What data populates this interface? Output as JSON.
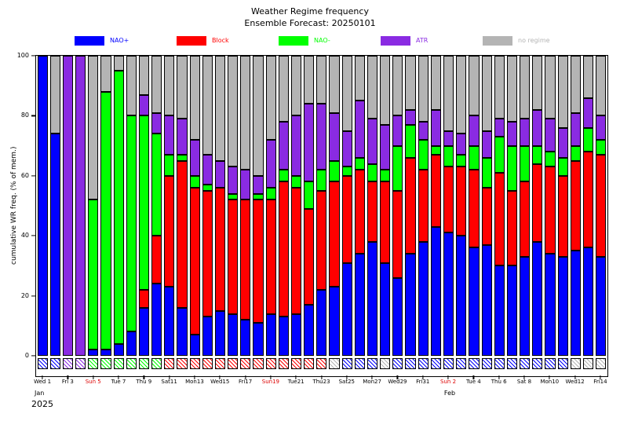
{
  "title": "Weather Regime frequency",
  "subtitle": "Ensemble Forecast: 20250101",
  "ylabel": "cumulative WR freq. (% of mem.)",
  "legend": [
    {
      "label": "NAO+",
      "color": "#0000ff"
    },
    {
      "label": "Block",
      "color": "#ff0000"
    },
    {
      "label": "NAO-",
      "color": "#00ff00"
    },
    {
      "label": "ATR",
      "color": "#8a2be2"
    },
    {
      "label": "no regime",
      "color": "#b4b4b4"
    }
  ],
  "x_axis": {
    "month_jan": "Jan",
    "year": "2025",
    "month_feb": "Feb"
  },
  "chart_data": {
    "type": "bar",
    "stacked": true,
    "title": "Weather Regime frequency",
    "subtitle": "Ensemble Forecast: 20250101",
    "ylabel": "cumulative WR freq. (% of mem.)",
    "ylim": [
      0,
      100
    ],
    "yticks": [
      0,
      20,
      40,
      60,
      80,
      100
    ],
    "num_days": 45,
    "x_start_date": "Wed Jan 1 2025",
    "x_end_date": "Fri Feb 14 2025",
    "sunday_color": "#dd0000",
    "legend_position": "top",
    "series": [
      {
        "name": "NAO+",
        "color": "#0000ff",
        "values": [
          100,
          74,
          0,
          0,
          2,
          2,
          4,
          8,
          16,
          24,
          23,
          16,
          7,
          13,
          15,
          14,
          12,
          11,
          14,
          13,
          14,
          17,
          22,
          23,
          31,
          34,
          38,
          31,
          26,
          34,
          38,
          43,
          41,
          40,
          36,
          37,
          30,
          30,
          33,
          38,
          34,
          33,
          35,
          36,
          33
        ]
      },
      {
        "name": "Block",
        "color": "#ff0000",
        "values": [
          0,
          0,
          0,
          0,
          0,
          0,
          0,
          0,
          6,
          16,
          37,
          49,
          49,
          42,
          41,
          38,
          40,
          41,
          38,
          45,
          42,
          32,
          33,
          35,
          29,
          28,
          20,
          27,
          29,
          32,
          24,
          24,
          22,
          23,
          26,
          19,
          31,
          25,
          25,
          26,
          29,
          27,
          30,
          32,
          34
        ]
      },
      {
        "name": "NAO-",
        "color": "#00ff00",
        "values": [
          0,
          0,
          0,
          0,
          50,
          86,
          91,
          72,
          58,
          34,
          7,
          2,
          4,
          2,
          0,
          2,
          0,
          2,
          4,
          4,
          4,
          9,
          7,
          7,
          3,
          4,
          6,
          4,
          15,
          11,
          10,
          3,
          7,
          4,
          8,
          10,
          12,
          15,
          12,
          6,
          5,
          6,
          5,
          8,
          5
        ]
      },
      {
        "name": "ATR",
        "color": "#8a2be2",
        "values": [
          0,
          0,
          100,
          100,
          0,
          0,
          0,
          0,
          7,
          7,
          13,
          12,
          12,
          10,
          9,
          9,
          10,
          6,
          16,
          16,
          20,
          26,
          22,
          16,
          12,
          19,
          15,
          15,
          10,
          5,
          6,
          12,
          5,
          7,
          10,
          9,
          6,
          8,
          9,
          12,
          11,
          10,
          11,
          10,
          8
        ]
      },
      {
        "name": "no regime",
        "color": "#b4b4b4",
        "values": [
          0,
          26,
          0,
          0,
          48,
          12,
          5,
          20,
          13,
          19,
          20,
          21,
          28,
          33,
          35,
          37,
          38,
          40,
          28,
          22,
          20,
          16,
          16,
          19,
          25,
          15,
          21,
          23,
          20,
          18,
          22,
          18,
          25,
          26,
          20,
          25,
          21,
          22,
          21,
          18,
          21,
          24,
          19,
          14,
          20
        ]
      }
    ],
    "xtick_labels": [
      {
        "day": 0,
        "label": "Wed 1",
        "sunday": false
      },
      {
        "day": 2,
        "label": "Fri 3",
        "sunday": false
      },
      {
        "day": 4,
        "label": "Sun 5",
        "sunday": true
      },
      {
        "day": 6,
        "label": "Tue 7",
        "sunday": false
      },
      {
        "day": 8,
        "label": "Thu 9",
        "sunday": false
      },
      {
        "day": 10,
        "label": "Sat11",
        "sunday": false
      },
      {
        "day": 12,
        "label": "Mon13",
        "sunday": false
      },
      {
        "day": 14,
        "label": "Wed15",
        "sunday": false
      },
      {
        "day": 16,
        "label": "Fri17",
        "sunday": false
      },
      {
        "day": 18,
        "label": "Sun19",
        "sunday": true
      },
      {
        "day": 20,
        "label": "Tue21",
        "sunday": false
      },
      {
        "day": 22,
        "label": "Thu23",
        "sunday": false
      },
      {
        "day": 24,
        "label": "Sat25",
        "sunday": false
      },
      {
        "day": 26,
        "label": "Mon27",
        "sunday": false
      },
      {
        "day": 28,
        "label": "Wed29",
        "sunday": false
      },
      {
        "day": 30,
        "label": "Fri31",
        "sunday": false
      },
      {
        "day": 32,
        "label": "Sun 2",
        "sunday": true
      },
      {
        "day": 34,
        "label": "Tue 4",
        "sunday": false
      },
      {
        "day": 36,
        "label": "Thu 6",
        "sunday": false
      },
      {
        "day": 38,
        "label": "Sat 8",
        "sunday": false
      },
      {
        "day": 40,
        "label": "Mon10",
        "sunday": false
      },
      {
        "day": 42,
        "label": "Wed12",
        "sunday": false
      },
      {
        "day": 44,
        "label": "Fri14",
        "sunday": false
      }
    ],
    "marker_row": [
      "#0000ff",
      "#0000ff",
      "#8a2be2",
      "#8a2be2",
      "#00ff00",
      "#00ff00",
      "#00ff00",
      "#00ff00",
      "#00ff00",
      "#00ff00",
      "#ff0000",
      "#ff0000",
      "#ff0000",
      "#ff0000",
      "#ff0000",
      "#ff0000",
      "#ff0000",
      "#ff0000",
      "#ff0000",
      "#ff0000",
      "#ff0000",
      "#ff0000",
      "#ff0000",
      "#b4b4b4",
      "#0000ff",
      "#0000ff",
      "#0000ff",
      "#b4b4b4",
      "#0000ff",
      "#0000ff",
      "#0000ff",
      "#0000ff",
      "#0000ff",
      "#0000ff",
      "#0000ff",
      "#0000ff",
      "#0000ff",
      "#0000ff",
      "#0000ff",
      "#0000ff",
      "#0000ff",
      "#0000ff",
      "#b4b4b4",
      "#b4b4b4",
      "#b4b4b4"
    ]
  }
}
